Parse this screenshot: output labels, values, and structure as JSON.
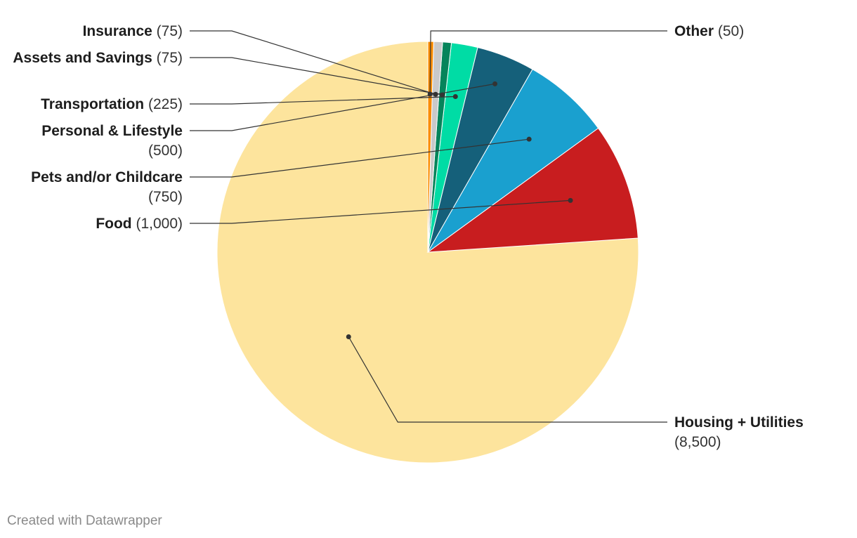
{
  "chart_data": {
    "type": "pie",
    "slices": [
      {
        "name": "Housing + Utilities",
        "value": 8500,
        "value_label": "(8,500)",
        "color": "#fde49d"
      },
      {
        "name": "Food",
        "value": 1000,
        "value_label": "(1,000)",
        "color": "#c81d1f"
      },
      {
        "name": "Pets and/or Childcare",
        "value": 750,
        "value_label": "(750)",
        "color": "#1aa0cf"
      },
      {
        "name": "Personal & Lifestyle",
        "value": 500,
        "value_label": "(500)",
        "color": "#15607a"
      },
      {
        "name": "Transportation",
        "value": 225,
        "value_label": "(225)",
        "color": "#00dca5"
      },
      {
        "name": "Assets and Savings",
        "value": 75,
        "value_label": "(75)",
        "color": "#05845a"
      },
      {
        "name": "Insurance",
        "value": 75,
        "value_label": "(75)",
        "color": "#c9c9c9"
      },
      {
        "name": "Other",
        "value": 50,
        "value_label": "(50)",
        "color": "#fa8c00"
      }
    ]
  },
  "footer": {
    "credit": "Created with Datawrapper"
  }
}
